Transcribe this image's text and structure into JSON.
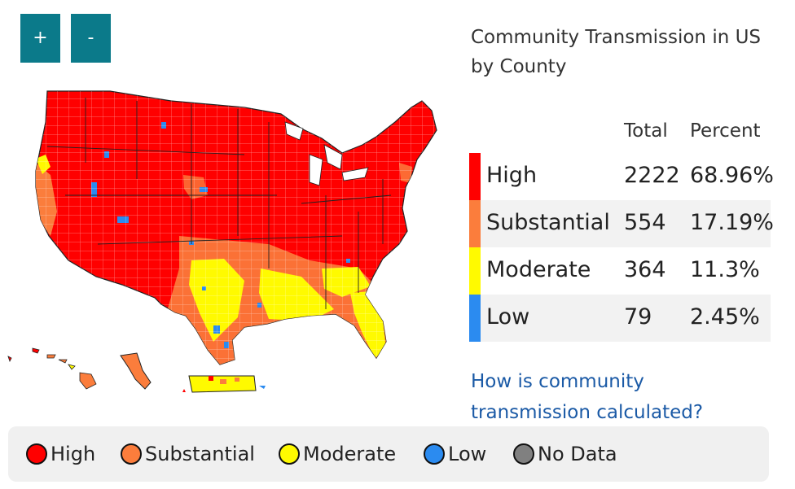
{
  "controls": {
    "zoom_in": "+",
    "zoom_out": "-"
  },
  "title": "Community Transmission in US by County",
  "table": {
    "headers": {
      "total": "Total",
      "percent": "Percent"
    },
    "rows": [
      {
        "level": "High",
        "total": "2222",
        "percent": "68.96%",
        "color": "#ff0000"
      },
      {
        "level": "Substantial",
        "total": "554",
        "percent": "17.19%",
        "color": "#fb7d3c"
      },
      {
        "level": "Moderate",
        "total": "364",
        "percent": "11.3%",
        "color": "#fffa00"
      },
      {
        "level": "Low",
        "total": "79",
        "percent": "2.45%",
        "color": "#2b8bf0"
      }
    ]
  },
  "link_text": "How is community transmission calculated?",
  "legend": [
    {
      "label": "High",
      "color": "#ff0000"
    },
    {
      "label": "Substantial",
      "color": "#fb7d3c"
    },
    {
      "label": "Moderate",
      "color": "#fffa00"
    },
    {
      "label": "Low",
      "color": "#2b8bf0"
    },
    {
      "label": "No Data",
      "color": "#808080"
    }
  ]
}
